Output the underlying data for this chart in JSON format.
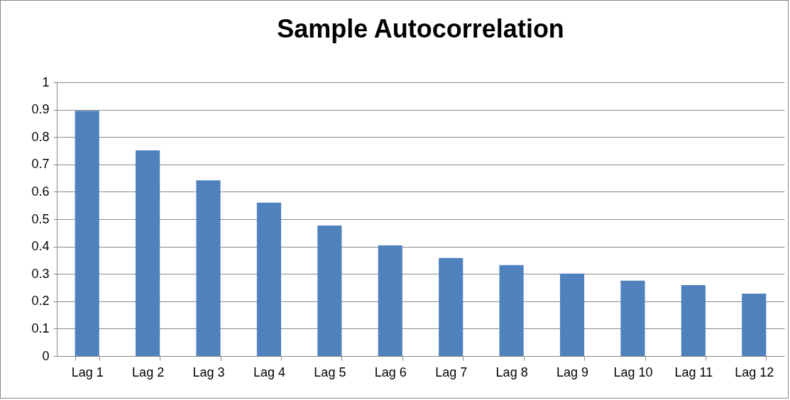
{
  "chart_data": {
    "type": "bar",
    "title": "Sample Autocorrelation",
    "categories": [
      "Lag 1",
      "Lag 2",
      "Lag 3",
      "Lag 4",
      "Lag 5",
      "Lag 6",
      "Lag 7",
      "Lag 8",
      "Lag 9",
      "Lag 10",
      "Lag 11",
      "Lag 12"
    ],
    "values": [
      0.896,
      0.751,
      0.642,
      0.56,
      0.477,
      0.404,
      0.358,
      0.332,
      0.301,
      0.275,
      0.259,
      0.228
    ],
    "color": "#4f81bd",
    "ylim": [
      0,
      1
    ],
    "yticks": [
      0,
      0.1,
      0.2,
      0.3,
      0.4,
      0.5,
      0.6,
      0.7,
      0.8,
      0.9,
      1
    ],
    "grid": "y"
  }
}
